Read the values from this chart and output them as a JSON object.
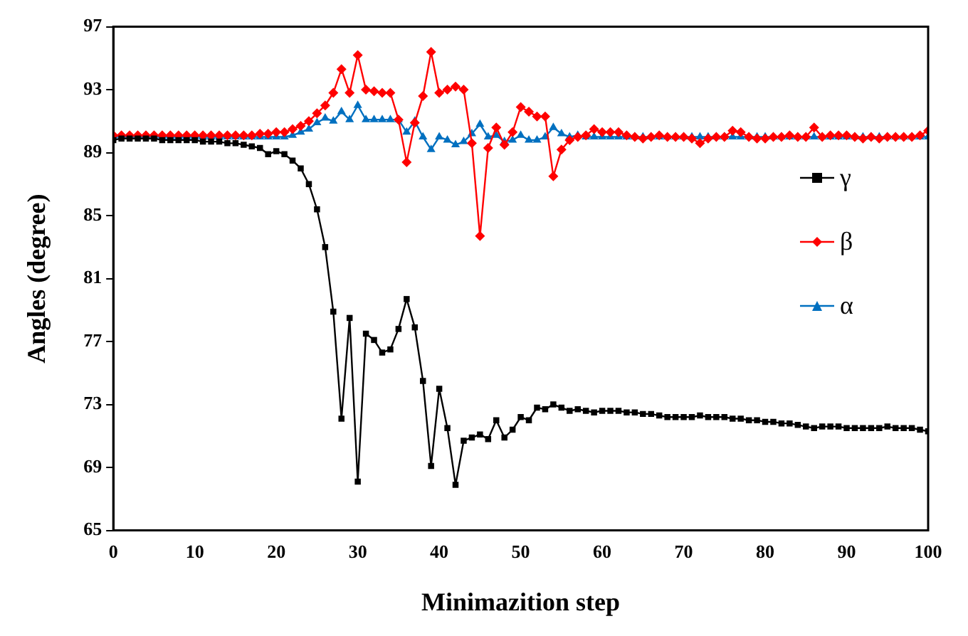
{
  "chart_data": {
    "type": "line",
    "xlabel": "Minimazition step",
    "ylabel": "Angles (degree)",
    "x": [
      0,
      1,
      2,
      3,
      4,
      5,
      6,
      7,
      8,
      9,
      10,
      11,
      12,
      13,
      14,
      15,
      16,
      17,
      18,
      19,
      20,
      21,
      22,
      23,
      24,
      25,
      26,
      27,
      28,
      29,
      30,
      31,
      32,
      33,
      34,
      35,
      36,
      37,
      38,
      39,
      40,
      41,
      42,
      43,
      44,
      45,
      46,
      47,
      48,
      49,
      50,
      51,
      52,
      53,
      54,
      55,
      56,
      57,
      58,
      59,
      60,
      61,
      62,
      63,
      64,
      65,
      66,
      67,
      68,
      69,
      70,
      71,
      72,
      73,
      74,
      75,
      76,
      77,
      78,
      79,
      80,
      81,
      82,
      83,
      84,
      85,
      86,
      87,
      88,
      89,
      90,
      91,
      92,
      93,
      94,
      95,
      96,
      97,
      98,
      99,
      100
    ],
    "xlim": [
      0,
      100
    ],
    "xticks": [
      0,
      10,
      20,
      30,
      40,
      50,
      60,
      70,
      80,
      90,
      100
    ],
    "ylim": [
      65,
      97
    ],
    "yticks": [
      65,
      69,
      73,
      77,
      81,
      85,
      89,
      93,
      97
    ],
    "grid": false,
    "legend": "right",
    "series": [
      {
        "name": "γ",
        "color": "#000000",
        "marker": "square",
        "values": [
          89.8,
          89.9,
          89.9,
          89.9,
          89.9,
          89.9,
          89.8,
          89.8,
          89.8,
          89.8,
          89.8,
          89.7,
          89.7,
          89.7,
          89.6,
          89.6,
          89.5,
          89.4,
          89.3,
          88.9,
          89.1,
          88.9,
          88.5,
          88.0,
          87.0,
          85.4,
          83.0,
          78.9,
          72.1,
          78.5,
          68.1,
          77.5,
          77.1,
          76.3,
          76.5,
          77.8,
          79.7,
          77.9,
          74.5,
          69.1,
          74.0,
          71.5,
          67.9,
          70.7,
          70.9,
          71.1,
          70.8,
          72.0,
          70.9,
          71.4,
          72.2,
          72.0,
          72.8,
          72.7,
          73.0,
          72.8,
          72.6,
          72.7,
          72.6,
          72.5,
          72.6,
          72.6,
          72.6,
          72.5,
          72.5,
          72.4,
          72.4,
          72.3,
          72.2,
          72.2,
          72.2,
          72.2,
          72.3,
          72.2,
          72.2,
          72.2,
          72.1,
          72.1,
          72.0,
          72.0,
          71.9,
          71.9,
          71.8,
          71.8,
          71.7,
          71.6,
          71.5,
          71.6,
          71.6,
          71.6,
          71.5,
          71.5,
          71.5,
          71.5,
          71.5,
          71.6,
          71.5,
          71.5,
          71.5,
          71.4,
          71.3
        ]
      },
      {
        "name": "β",
        "color": "#ff0000",
        "marker": "diamond",
        "values": [
          90.1,
          90.1,
          90.1,
          90.1,
          90.1,
          90.1,
          90.1,
          90.1,
          90.1,
          90.1,
          90.1,
          90.1,
          90.1,
          90.1,
          90.1,
          90.1,
          90.1,
          90.1,
          90.2,
          90.2,
          90.3,
          90.3,
          90.5,
          90.7,
          91.0,
          91.5,
          92.0,
          92.8,
          94.3,
          92.8,
          95.2,
          93.0,
          92.9,
          92.8,
          92.8,
          91.1,
          88.4,
          90.9,
          92.6,
          95.4,
          92.8,
          93.0,
          93.2,
          93.0,
          89.6,
          83.7,
          89.3,
          90.6,
          89.5,
          90.3,
          91.9,
          91.6,
          91.3,
          91.3,
          87.5,
          89.2,
          89.8,
          90.0,
          90.1,
          90.5,
          90.3,
          90.3,
          90.3,
          90.1,
          90.0,
          89.9,
          90.0,
          90.1,
          90.0,
          90.0,
          90.0,
          89.9,
          89.6,
          89.9,
          90.0,
          90.0,
          90.4,
          90.3,
          90.0,
          89.9,
          89.9,
          90.0,
          90.0,
          90.1,
          90.0,
          90.0,
          90.6,
          90.0,
          90.1,
          90.1,
          90.1,
          90.0,
          89.9,
          90.0,
          89.9,
          90.0,
          90.0,
          90.0,
          90.0,
          90.1,
          90.4
        ]
      },
      {
        "name": "α",
        "color": "#0070c0",
        "marker": "triangle",
        "values": [
          90.0,
          90.0,
          90.0,
          90.0,
          90.0,
          90.0,
          90.0,
          90.0,
          90.0,
          90.0,
          90.0,
          90.0,
          90.0,
          90.0,
          90.0,
          90.0,
          90.0,
          90.0,
          90.0,
          90.0,
          90.0,
          90.0,
          90.1,
          90.3,
          90.5,
          90.9,
          91.2,
          91.0,
          91.6,
          91.1,
          92.0,
          91.1,
          91.1,
          91.1,
          91.1,
          91.1,
          90.3,
          91.0,
          90.0,
          89.2,
          90.0,
          89.8,
          89.5,
          89.7,
          90.2,
          90.8,
          90.0,
          90.1,
          89.7,
          89.8,
          90.1,
          89.8,
          89.8,
          90.0,
          90.6,
          90.2,
          90.0,
          90.1,
          90.0,
          90.0,
          90.0,
          90.0,
          90.0,
          90.0,
          90.0,
          90.0,
          90.0,
          90.0,
          90.0,
          90.0,
          90.0,
          90.0,
          90.0,
          90.0,
          90.0,
          90.0,
          90.0,
          90.0,
          90.0,
          90.0,
          90.0,
          90.0,
          90.0,
          90.0,
          90.0,
          90.0,
          90.0,
          90.0,
          90.0,
          90.0,
          90.0,
          90.0,
          90.0,
          90.0,
          90.0,
          90.0,
          90.0,
          90.0,
          90.0,
          90.0,
          90.0
        ]
      }
    ]
  }
}
